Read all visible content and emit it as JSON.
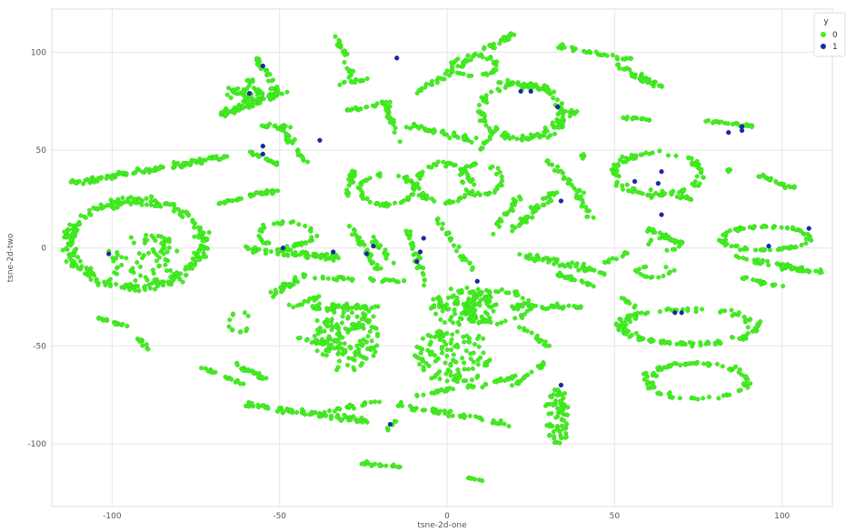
{
  "chart_data": {
    "type": "scatter",
    "title": "",
    "xlabel": "tsne-2d-one",
    "ylabel": "tsne-2d-two",
    "xlim": [
      -118,
      115
    ],
    "ylim": [
      -132,
      122
    ],
    "xticks": [
      -100,
      -50,
      0,
      50,
      100
    ],
    "yticks": [
      -100,
      -50,
      0,
      50,
      100
    ],
    "xtick_labels": [
      "-100",
      "-50",
      "0",
      "50",
      "100"
    ],
    "ytick_labels": [
      "-100",
      "-50",
      "0",
      "50",
      "100"
    ],
    "grid": true,
    "legend": {
      "title": "y",
      "placement": "top-right",
      "entries": [
        {
          "label": "0",
          "color": "#44ee22"
        },
        {
          "label": "1",
          "color": "#1a2aa8"
        }
      ]
    },
    "series": [
      {
        "name": "0",
        "color": "#44ee22",
        "clusters": [
          {
            "shape": "ring",
            "cx": -93,
            "cy": 2,
            "rx": 20,
            "ry": 22,
            "n": 260
          },
          {
            "shape": "blob",
            "cx": -90,
            "cy": -5,
            "rx": 12,
            "ry": 12,
            "n": 70
          },
          {
            "shape": "arc",
            "x1": -112,
            "y1": 33,
            "x2": -65,
            "y2": 47,
            "spread": 3,
            "n": 110
          },
          {
            "shape": "arc",
            "x1": -68,
            "y1": 68,
            "x2": -48,
            "y2": 80,
            "spread": 3,
            "n": 70
          },
          {
            "shape": "blob",
            "cx": -58,
            "cy": 80,
            "rx": 8,
            "ry": 6,
            "n": 60
          },
          {
            "shape": "arc",
            "x1": -57,
            "y1": 97,
            "x2": -52,
            "y2": 85,
            "spread": 2,
            "n": 18
          },
          {
            "shape": "arc",
            "x1": -68,
            "y1": 23,
            "x2": -50,
            "y2": 30,
            "spread": 2,
            "n": 40
          },
          {
            "shape": "arc",
            "x1": -56,
            "y1": 62,
            "x2": -45,
            "y2": 62,
            "spread": 2,
            "n": 20
          },
          {
            "shape": "arc",
            "x1": -60,
            "y1": 50,
            "x2": -50,
            "y2": 42,
            "spread": 2,
            "n": 20
          },
          {
            "shape": "arc",
            "x1": -49,
            "y1": 60,
            "x2": -42,
            "y2": 43,
            "spread": 2,
            "n": 26
          },
          {
            "shape": "arc",
            "x1": -33,
            "y1": 108,
            "x2": -28,
            "y2": 85,
            "spread": 2,
            "n": 26
          },
          {
            "shape": "arc",
            "x1": -33,
            "y1": 84,
            "x2": -24,
            "y2": 86,
            "spread": 2,
            "n": 12
          },
          {
            "shape": "arc",
            "x1": -30,
            "y1": 70,
            "x2": -15,
            "y2": 75,
            "spread": 2,
            "n": 22
          },
          {
            "shape": "arc",
            "x1": -18,
            "y1": 74,
            "x2": -15,
            "y2": 55,
            "spread": 2,
            "n": 20
          },
          {
            "shape": "ring",
            "cx": -18,
            "cy": 30,
            "rx": 8,
            "ry": 8,
            "n": 55
          },
          {
            "shape": "ring",
            "cx": -1,
            "cy": 33,
            "rx": 8,
            "ry": 10,
            "n": 60
          },
          {
            "shape": "ring",
            "cx": 10,
            "cy": 35,
            "rx": 6,
            "ry": 8,
            "n": 40
          },
          {
            "shape": "arc",
            "x1": -30,
            "y1": 25,
            "x2": -28,
            "y2": 40,
            "spread": 2,
            "n": 16
          },
          {
            "shape": "arc",
            "x1": -12,
            "y1": 63,
            "x2": 8,
            "y2": 55,
            "spread": 3,
            "n": 40
          },
          {
            "shape": "arc",
            "x1": 10,
            "y1": 50,
            "x2": 15,
            "y2": 62,
            "spread": 2,
            "n": 14
          },
          {
            "shape": "arc",
            "x1": -8,
            "y1": 80,
            "x2": 20,
            "y2": 110,
            "spread": 3,
            "n": 55
          },
          {
            "shape": "ring",
            "cx": 8,
            "cy": 93,
            "rx": 7,
            "ry": 5,
            "n": 35
          },
          {
            "shape": "ring",
            "cx": 22,
            "cy": 70,
            "rx": 12,
            "ry": 14,
            "n": 110
          },
          {
            "shape": "arc",
            "x1": 15,
            "y1": 85,
            "x2": 33,
            "y2": 80,
            "spread": 2,
            "n": 22
          },
          {
            "shape": "arc",
            "x1": 30,
            "y1": 55,
            "x2": 38,
            "y2": 70,
            "spread": 2,
            "n": 20
          },
          {
            "shape": "arc",
            "x1": 33,
            "y1": 103,
            "x2": 55,
            "y2": 96,
            "spread": 2,
            "n": 30
          },
          {
            "shape": "arc",
            "x1": 50,
            "y1": 94,
            "x2": 62,
            "y2": 84,
            "spread": 2,
            "n": 22
          },
          {
            "shape": "arc",
            "x1": 55,
            "y1": 88,
            "x2": 65,
            "y2": 82,
            "spread": 2,
            "n": 20
          },
          {
            "shape": "arc",
            "x1": 52,
            "y1": 67,
            "x2": 62,
            "y2": 65,
            "spread": 2,
            "n": 14
          },
          {
            "shape": "arc",
            "x1": 76,
            "y1": 65,
            "x2": 92,
            "y2": 62,
            "spread": 2,
            "n": 24
          },
          {
            "shape": "ring",
            "cx": 63,
            "cy": 38,
            "rx": 13,
            "ry": 11,
            "n": 90
          },
          {
            "shape": "arc",
            "x1": 60,
            "y1": 30,
            "x2": 73,
            "y2": 25,
            "spread": 2,
            "n": 16
          },
          {
            "shape": "arc",
            "x1": 93,
            "y1": 37,
            "x2": 105,
            "y2": 30,
            "spread": 2,
            "n": 24
          },
          {
            "shape": "arc",
            "x1": 60,
            "y1": 10,
            "x2": 70,
            "y2": 2,
            "spread": 2,
            "n": 26
          },
          {
            "shape": "ring",
            "cx": 65,
            "cy": 2,
            "rx": 5,
            "ry": 3,
            "n": 14
          },
          {
            "shape": "ring",
            "cx": 95,
            "cy": 5,
            "rx": 13,
            "ry": 6,
            "n": 80
          },
          {
            "shape": "arc",
            "x1": 87,
            "y1": -5,
            "x2": 112,
            "y2": -13,
            "spread": 3,
            "n": 55
          },
          {
            "shape": "arc",
            "x1": 88,
            "y1": -15,
            "x2": 100,
            "y2": -20,
            "spread": 2,
            "n": 20
          },
          {
            "shape": "ring",
            "cx": 62,
            "cy": -12,
            "rx": 5,
            "ry": 3,
            "n": 16
          },
          {
            "shape": "arc",
            "x1": 54,
            "y1": -2,
            "x2": 46,
            "y2": -8,
            "spread": 2,
            "n": 10
          },
          {
            "shape": "arc",
            "x1": 30,
            "y1": 45,
            "x2": 40,
            "y2": 28,
            "spread": 2,
            "n": 22
          },
          {
            "shape": "arc",
            "x1": 20,
            "y1": 10,
            "x2": 32,
            "y2": 28,
            "spread": 3,
            "n": 40
          },
          {
            "shape": "arc",
            "x1": 13,
            "y1": 8,
            "x2": 22,
            "y2": 27,
            "spread": 2,
            "n": 24
          },
          {
            "shape": "arc",
            "x1": 38,
            "y1": 30,
            "x2": 43,
            "y2": 15,
            "spread": 2,
            "n": 16
          },
          {
            "shape": "arc",
            "x1": 22,
            "y1": -3,
            "x2": 48,
            "y2": -13,
            "spread": 3,
            "n": 50
          },
          {
            "shape": "arc",
            "x1": 33,
            "y1": -13,
            "x2": 45,
            "y2": -20,
            "spread": 2,
            "n": 22
          },
          {
            "shape": "arc",
            "x1": -60,
            "y1": 0,
            "x2": -32,
            "y2": -5,
            "spread": 4,
            "n": 80
          },
          {
            "shape": "ring",
            "cx": -48,
            "cy": 7,
            "rx": 8,
            "ry": 6,
            "n": 40
          },
          {
            "shape": "arc",
            "x1": -53,
            "y1": -25,
            "x2": -42,
            "y2": -13,
            "spread": 3,
            "n": 30
          },
          {
            "shape": "arc",
            "x1": -47,
            "y1": -30,
            "x2": -38,
            "y2": -25,
            "spread": 2,
            "n": 14
          },
          {
            "shape": "arc",
            "x1": -30,
            "y1": 12,
            "x2": -20,
            "y2": -12,
            "spread": 3,
            "n": 30
          },
          {
            "shape": "arc",
            "x1": -22,
            "y1": 5,
            "x2": -16,
            "y2": -8,
            "spread": 2,
            "n": 14
          },
          {
            "shape": "arc",
            "x1": -40,
            "y1": -15,
            "x2": -10,
            "y2": -17,
            "spread": 2,
            "n": 30
          },
          {
            "shape": "blob",
            "cx": -30,
            "cy": -45,
            "rx": 10,
            "ry": 18,
            "n": 150
          },
          {
            "shape": "arc",
            "x1": -40,
            "y1": -30,
            "x2": -20,
            "y2": -30,
            "spread": 3,
            "n": 30
          },
          {
            "shape": "arc",
            "x1": -12,
            "y1": 10,
            "x2": -6,
            "y2": -20,
            "spread": 2,
            "n": 30
          },
          {
            "shape": "arc",
            "x1": -3,
            "y1": 15,
            "x2": 8,
            "y2": -12,
            "spread": 2,
            "n": 26
          },
          {
            "shape": "blob",
            "cx": 5,
            "cy": -30,
            "rx": 10,
            "ry": 10,
            "n": 110
          },
          {
            "shape": "ring",
            "cx": 15,
            "cy": -30,
            "rx": 9,
            "ry": 8,
            "n": 60
          },
          {
            "shape": "blob",
            "cx": 2,
            "cy": -55,
            "rx": 12,
            "ry": 14,
            "n": 120
          },
          {
            "shape": "arc",
            "x1": -10,
            "y1": -75,
            "x2": 10,
            "y2": -70,
            "spread": 2,
            "n": 22
          },
          {
            "shape": "arc",
            "x1": 10,
            "y1": -70,
            "x2": 22,
            "y2": -65,
            "spread": 2,
            "n": 16
          },
          {
            "shape": "arc",
            "x1": -15,
            "y1": -80,
            "x2": 18,
            "y2": -90,
            "spread": 3,
            "n": 50
          },
          {
            "shape": "arc",
            "x1": 20,
            "y1": -70,
            "x2": 30,
            "y2": -58,
            "spread": 2,
            "n": 18
          },
          {
            "shape": "blob",
            "cx": 33,
            "cy": -86,
            "rx": 4,
            "ry": 14,
            "n": 70
          },
          {
            "shape": "arc",
            "x1": 20,
            "y1": -30,
            "x2": 40,
            "y2": -30,
            "spread": 3,
            "n": 40
          },
          {
            "shape": "arc",
            "x1": 22,
            "y1": -40,
            "x2": 30,
            "y2": -50,
            "spread": 2,
            "n": 16
          },
          {
            "shape": "ring",
            "cx": 72,
            "cy": -40,
            "rx": 20,
            "ry": 9,
            "n": 130
          },
          {
            "shape": "ring",
            "cx": 75,
            "cy": -68,
            "rx": 15,
            "ry": 9,
            "n": 90
          },
          {
            "shape": "arc",
            "x1": -105,
            "y1": -35,
            "x2": -95,
            "y2": -40,
            "spread": 2,
            "n": 16
          },
          {
            "shape": "arc",
            "x1": -92,
            "y1": -45,
            "x2": -90,
            "y2": -52,
            "spread": 2,
            "n": 10
          },
          {
            "shape": "ring",
            "cx": -62,
            "cy": -38,
            "rx": 3,
            "ry": 5,
            "n": 14
          },
          {
            "shape": "arc",
            "x1": -65,
            "y1": -58,
            "x2": -53,
            "y2": -68,
            "spread": 2,
            "n": 24
          },
          {
            "shape": "arc",
            "x1": -75,
            "y1": -60,
            "x2": -60,
            "y2": -70,
            "spread": 2,
            "n": 18
          },
          {
            "shape": "arc",
            "x1": -45,
            "y1": -45,
            "x2": -35,
            "y2": -50,
            "spread": 2,
            "n": 14
          },
          {
            "shape": "arc",
            "x1": -60,
            "y1": -80,
            "x2": -25,
            "y2": -88,
            "spread": 3,
            "n": 70
          },
          {
            "shape": "arc",
            "x1": -35,
            "y1": -83,
            "x2": -20,
            "y2": -78,
            "spread": 2,
            "n": 20
          },
          {
            "shape": "arc",
            "x1": -25,
            "y1": -110,
            "x2": -12,
            "y2": -112,
            "spread": 2,
            "n": 18
          },
          {
            "shape": "arc",
            "x1": 5,
            "y1": -117,
            "x2": 12,
            "y2": -119,
            "spread": 1,
            "n": 8
          },
          {
            "shape": "arc",
            "x1": -18,
            "y1": -93,
            "x2": -15,
            "y2": -88,
            "spread": 1,
            "n": 6
          },
          {
            "shape": "arc",
            "x1": 52,
            "y1": -25,
            "x2": 56,
            "y2": -30,
            "spread": 1,
            "n": 8
          },
          {
            "shape": "arc",
            "x1": 84,
            "y1": 42,
            "x2": 84,
            "y2": 38,
            "spread": 1,
            "n": 4
          },
          {
            "shape": "arc",
            "x1": 40,
            "y1": 45,
            "x2": 41,
            "y2": 48,
            "spread": 1,
            "n": 5
          }
        ]
      },
      {
        "name": "1",
        "color": "#1a2aa8",
        "points": [
          [
            -101,
            -3
          ],
          [
            -55,
            93
          ],
          [
            -59,
            79
          ],
          [
            -55,
            52
          ],
          [
            -55,
            48
          ],
          [
            -38,
            55
          ],
          [
            -49,
            0
          ],
          [
            -34,
            -2
          ],
          [
            -22,
            1
          ],
          [
            -24,
            -3
          ],
          [
            -15,
            97
          ],
          [
            -7,
            5
          ],
          [
            -8,
            -2
          ],
          [
            -9,
            -7
          ],
          [
            9,
            -17
          ],
          [
            22,
            80
          ],
          [
            25,
            80
          ],
          [
            33,
            72
          ],
          [
            34,
            24
          ],
          [
            34,
            -70
          ],
          [
            -17,
            -90
          ],
          [
            56,
            34
          ],
          [
            63,
            33
          ],
          [
            64,
            39
          ],
          [
            84,
            59
          ],
          [
            88,
            60
          ],
          [
            96,
            1
          ],
          [
            108,
            10
          ],
          [
            68,
            -33
          ],
          [
            70,
            -33
          ],
          [
            64,
            17
          ],
          [
            88,
            62
          ]
        ]
      }
    ]
  }
}
